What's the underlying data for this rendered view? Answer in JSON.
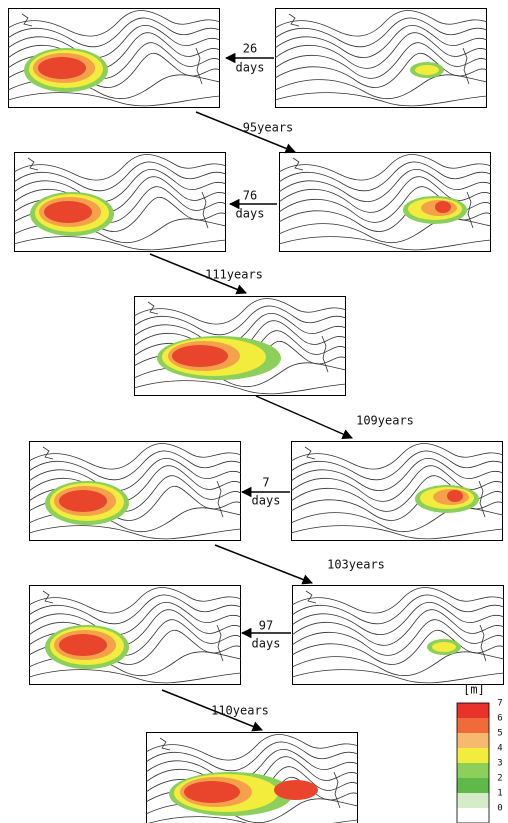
{
  "intervals": [
    {
      "value": "26",
      "unit": "days"
    },
    {
      "value": "76",
      "unit": "days"
    },
    {
      "value": "7",
      "unit": "days"
    },
    {
      "value": "97",
      "unit": "days"
    }
  ],
  "recurrences": [
    "95years",
    "111years",
    "109years",
    "103years",
    "110years"
  ],
  "legend": {
    "unit": "[m]",
    "labels": [
      "7",
      "6",
      "5",
      "4",
      "3",
      "2",
      "1",
      "0"
    ]
  }
}
